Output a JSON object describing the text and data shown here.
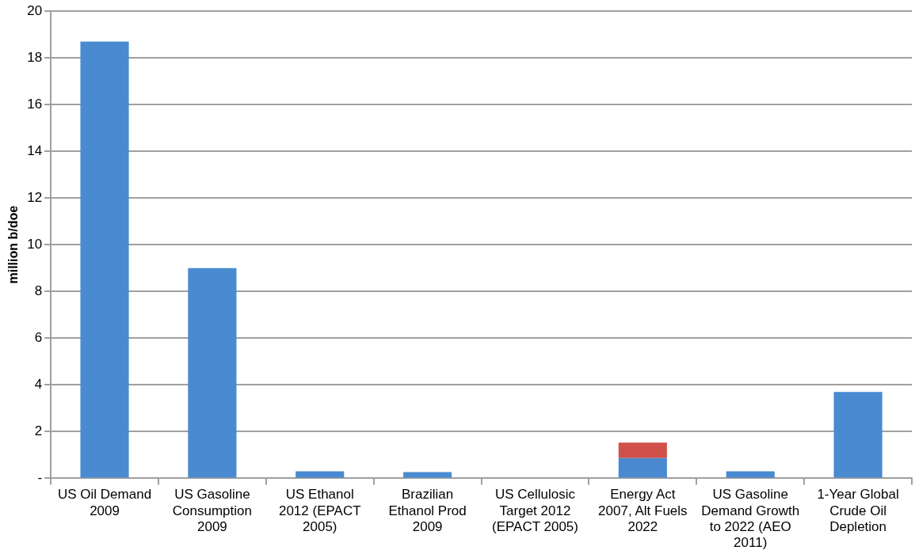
{
  "chart_data": {
    "type": "bar",
    "ylabel": "million b/doe",
    "stacked": true,
    "grid": "y",
    "legend": false,
    "categories": [
      "US Oil Demand 2009",
      "US Gasoline Consumption 2009",
      "US Ethanol 2012 (EPACT 2005)",
      "Brazilian Ethanol Prod 2009",
      "US Cellulosic Target 2012 (EPACT 2005)",
      "Energy Act 2007, Alt Fuels 2022",
      "US Gasoline Demand Growth to 2022 (AEO 2011)",
      "1-Year Global Crude Oil Depletion"
    ],
    "series": [
      {
        "color": "#4a8ad0",
        "values": [
          18.7,
          9.0,
          0.3,
          0.27,
          0,
          0.87,
          0.3,
          3.7
        ]
      },
      {
        "color": "#d0504a",
        "values": [
          null,
          null,
          null,
          null,
          null,
          0.66,
          null,
          null
        ]
      }
    ],
    "ylim": [
      0,
      20
    ],
    "yticks": [
      {
        "value": 0,
        "label": "-"
      },
      2,
      4,
      6,
      8,
      10,
      12,
      14,
      16,
      18,
      20
    ]
  }
}
